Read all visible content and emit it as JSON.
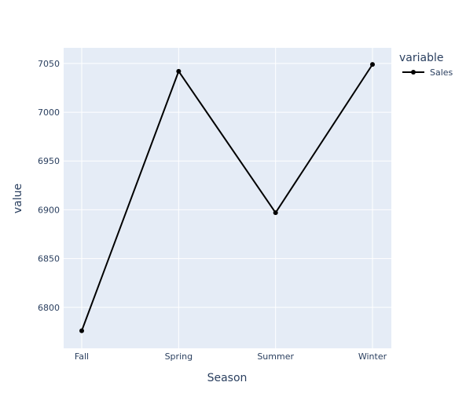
{
  "chart_data": {
    "type": "line",
    "x": [
      "Fall",
      "Spring",
      "Summer",
      "Winter"
    ],
    "series": [
      {
        "name": "Sales",
        "values": [
          6776,
          7042,
          6897,
          7049
        ]
      }
    ],
    "xlabel": "Season",
    "ylabel": "value",
    "ylim": [
      6758,
      7066
    ],
    "yticks": [
      6800,
      6850,
      6900,
      6950,
      7000,
      7050
    ],
    "legend": {
      "title": "variable",
      "placement": "top-right"
    },
    "grid": true,
    "colors": {
      "plot_background": "#e5ecf6",
      "grid": "#ffffff",
      "line": "#000000",
      "tick_text": "#2a3f5f",
      "axis_title": "#2a3f5f"
    }
  }
}
